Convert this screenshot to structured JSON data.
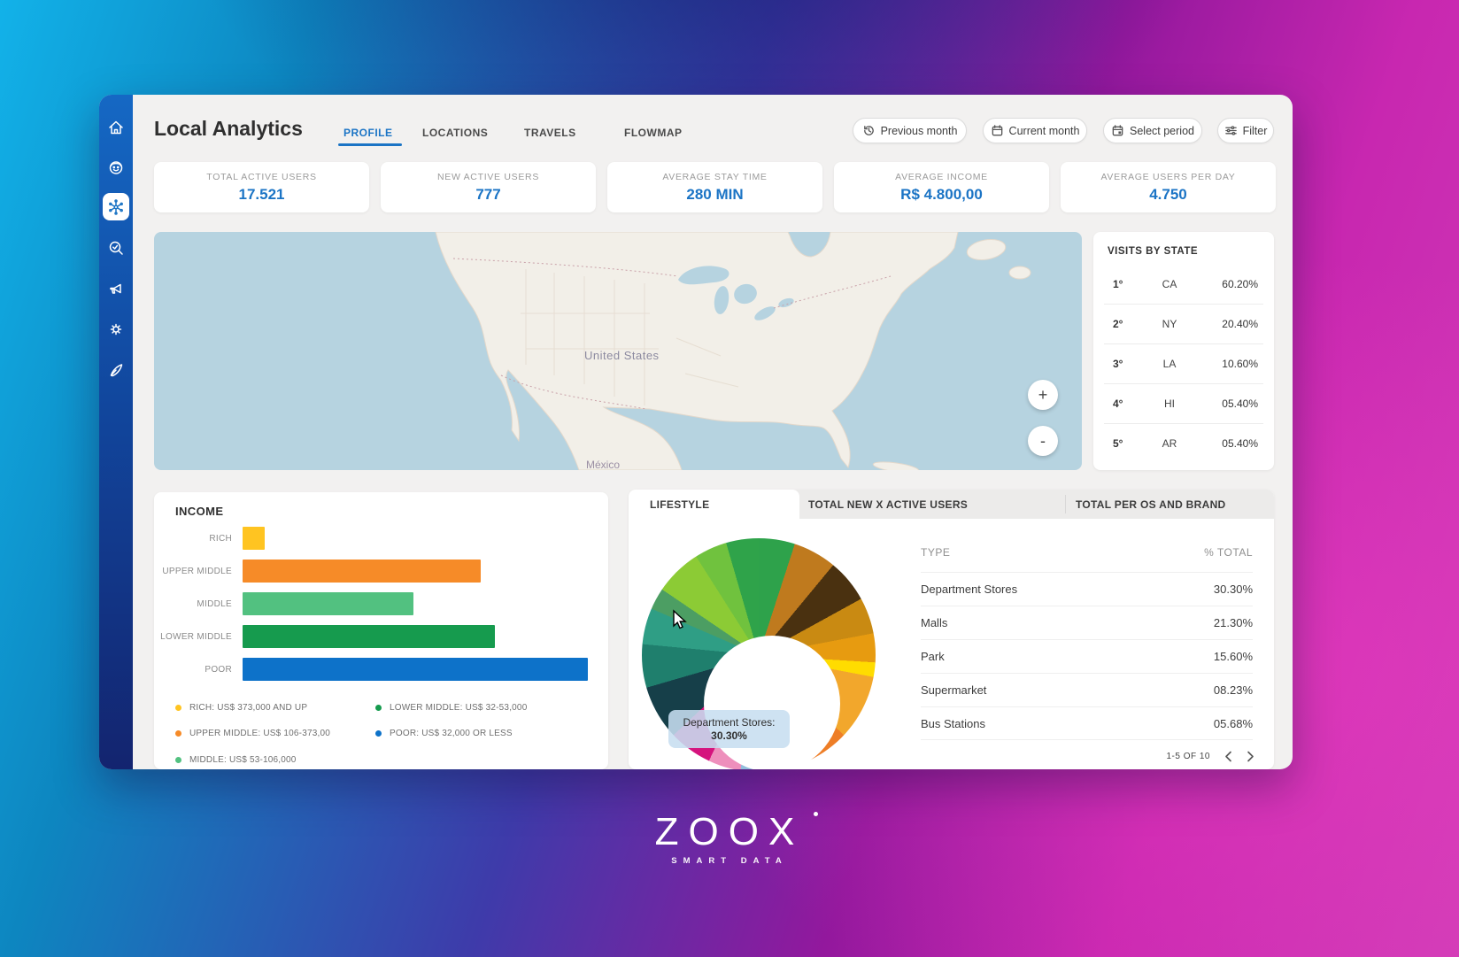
{
  "header": {
    "title": "Local Analytics",
    "tabs": [
      {
        "label": "PROFILE",
        "active": true
      },
      {
        "label": "LOCATIONS"
      },
      {
        "label": "TRAVELS"
      },
      {
        "label": "FLOWMAP"
      }
    ],
    "period_buttons": [
      {
        "label": "Previous month",
        "icon": "history-icon"
      },
      {
        "label": "Current month",
        "icon": "calendar-icon"
      },
      {
        "label": "Select period",
        "icon": "calendar-select-icon"
      }
    ],
    "filter_label": "Filter"
  },
  "sidebar": {
    "items": [
      {
        "icon": "home-icon"
      },
      {
        "icon": "user-face-icon"
      },
      {
        "icon": "network-icon",
        "active": true
      },
      {
        "icon": "search-check-icon"
      },
      {
        "icon": "megaphone-icon"
      },
      {
        "icon": "gear-icon"
      },
      {
        "icon": "rocket-icon"
      }
    ]
  },
  "stats": [
    {
      "label": "TOTAL ACTIVE USERS",
      "value": "17.521"
    },
    {
      "label": "NEW ACTIVE USERS",
      "value": "777"
    },
    {
      "label": "AVERAGE STAY TIME",
      "value": "280 MIN"
    },
    {
      "label": "AVERAGE INCOME",
      "value": "R$ 4.800,00"
    },
    {
      "label": "AVERAGE USERS PER DAY",
      "value": "4.750"
    }
  ],
  "map": {
    "country_label": "United States",
    "mexico_label": "México",
    "zoom_in": "+",
    "zoom_out": "-"
  },
  "visits_by_state": {
    "title": "VISITS BY STATE",
    "rows": [
      {
        "rank": "1°",
        "state": "CA",
        "pct": "60.20%"
      },
      {
        "rank": "2°",
        "state": "NY",
        "pct": "20.40%"
      },
      {
        "rank": "3°",
        "state": "LA",
        "pct": "10.60%"
      },
      {
        "rank": "4°",
        "state": "HI",
        "pct": "05.40%"
      },
      {
        "rank": "5°",
        "state": "AR",
        "pct": "05.40%"
      }
    ]
  },
  "income": {
    "title": "INCOME",
    "legend": [
      {
        "label": "RICH: US$ 373,000 AND UP",
        "color": "#FFC421"
      },
      {
        "label": "UPPER MIDDLE: US$ 106-373,00",
        "color": "#F68B28"
      },
      {
        "label": "MIDDLE: US$ 53-106,000",
        "color": "#52C180"
      },
      {
        "label": "LOWER MIDDLE: US$ 32-53,000",
        "color": "#169B4E"
      },
      {
        "label": "POOR: US$ 32,000 OR LESS",
        "color": "#0D72C9"
      }
    ]
  },
  "lifestyle": {
    "tabs": [
      {
        "label": "LIFESTYLE",
        "active": true
      },
      {
        "label": "TOTAL NEW X ACTIVE USERS"
      },
      {
        "label": "TOTAL PER OS AND BRAND"
      }
    ],
    "tooltip": {
      "line1": "Department Stores:",
      "line2": "30.30%"
    },
    "table": {
      "headers": [
        "TYPE",
        "% TOTAL"
      ],
      "rows": [
        {
          "type": "Department Stores",
          "pct": "30.30%"
        },
        {
          "type": "Malls",
          "pct": "21.30%"
        },
        {
          "type": "Park",
          "pct": "15.60%"
        },
        {
          "type": "Supermarket",
          "pct": "08.23%"
        },
        {
          "type": "Bus Stations",
          "pct": "05.68%"
        }
      ],
      "pagination": "1-5 OF 10"
    }
  },
  "chart_data": [
    {
      "type": "bar",
      "title": "INCOME",
      "orientation": "horizontal",
      "categories": [
        "RICH",
        "UPPER MIDDLE",
        "MIDDLE",
        "LOWER MIDDLE",
        "POOR"
      ],
      "values": [
        6.5,
        69,
        49.5,
        73,
        100
      ],
      "colors": [
        "#FFC421",
        "#F68B28",
        "#52C180",
        "#169B4E",
        "#0D72C9"
      ],
      "value_note": "relative bar length, percent of longest bar (POOR)",
      "grid": false,
      "legend_position": "bottom"
    },
    {
      "type": "pie",
      "donut": true,
      "title": "LIFESTYLE",
      "labeled_slices": [
        {
          "label": "Department Stores",
          "value": 30.3
        },
        {
          "label": "Malls",
          "value": 21.3
        },
        {
          "label": "Park",
          "value": 15.6
        },
        {
          "label": "Supermarket",
          "value": 8.23
        },
        {
          "label": "Bus Stations",
          "value": 5.68
        }
      ],
      "render_segments": [
        {
          "color": "#2EA24B",
          "pct": 5
        },
        {
          "color": "#BF7A1E",
          "pct": 6
        },
        {
          "color": "#4A3110",
          "pct": 6
        },
        {
          "color": "#C98A12",
          "pct": 5
        },
        {
          "color": "#E79B10",
          "pct": 4
        },
        {
          "color": "#FFDC00",
          "pct": 2
        },
        {
          "color": "#F2A72C",
          "pct": 9
        },
        {
          "color": "#EE7E27",
          "pct": 6
        },
        {
          "color": "#2F86C9",
          "pct": 4
        },
        {
          "color": "#92BEDC",
          "pct": 5.5
        },
        {
          "color": "#EE8FBC",
          "pct": 4.5
        },
        {
          "color": "#D5137D",
          "pct": 6
        },
        {
          "color": "#163F49",
          "pct": 7.5
        },
        {
          "color": "#1F7F6D",
          "pct": 6
        },
        {
          "color": "#2F9E85",
          "pct": 5
        },
        {
          "color": "#4C9E63",
          "pct": 3
        },
        {
          "color": "#8CCB35",
          "pct": 6.5
        },
        {
          "color": "#70C23E",
          "pct": 4.5
        },
        {
          "color": "#2FA34A",
          "pct": 4.5
        }
      ]
    }
  ],
  "logo": {
    "wordmark": "ZOOX",
    "tagline": "SMART DATA"
  }
}
